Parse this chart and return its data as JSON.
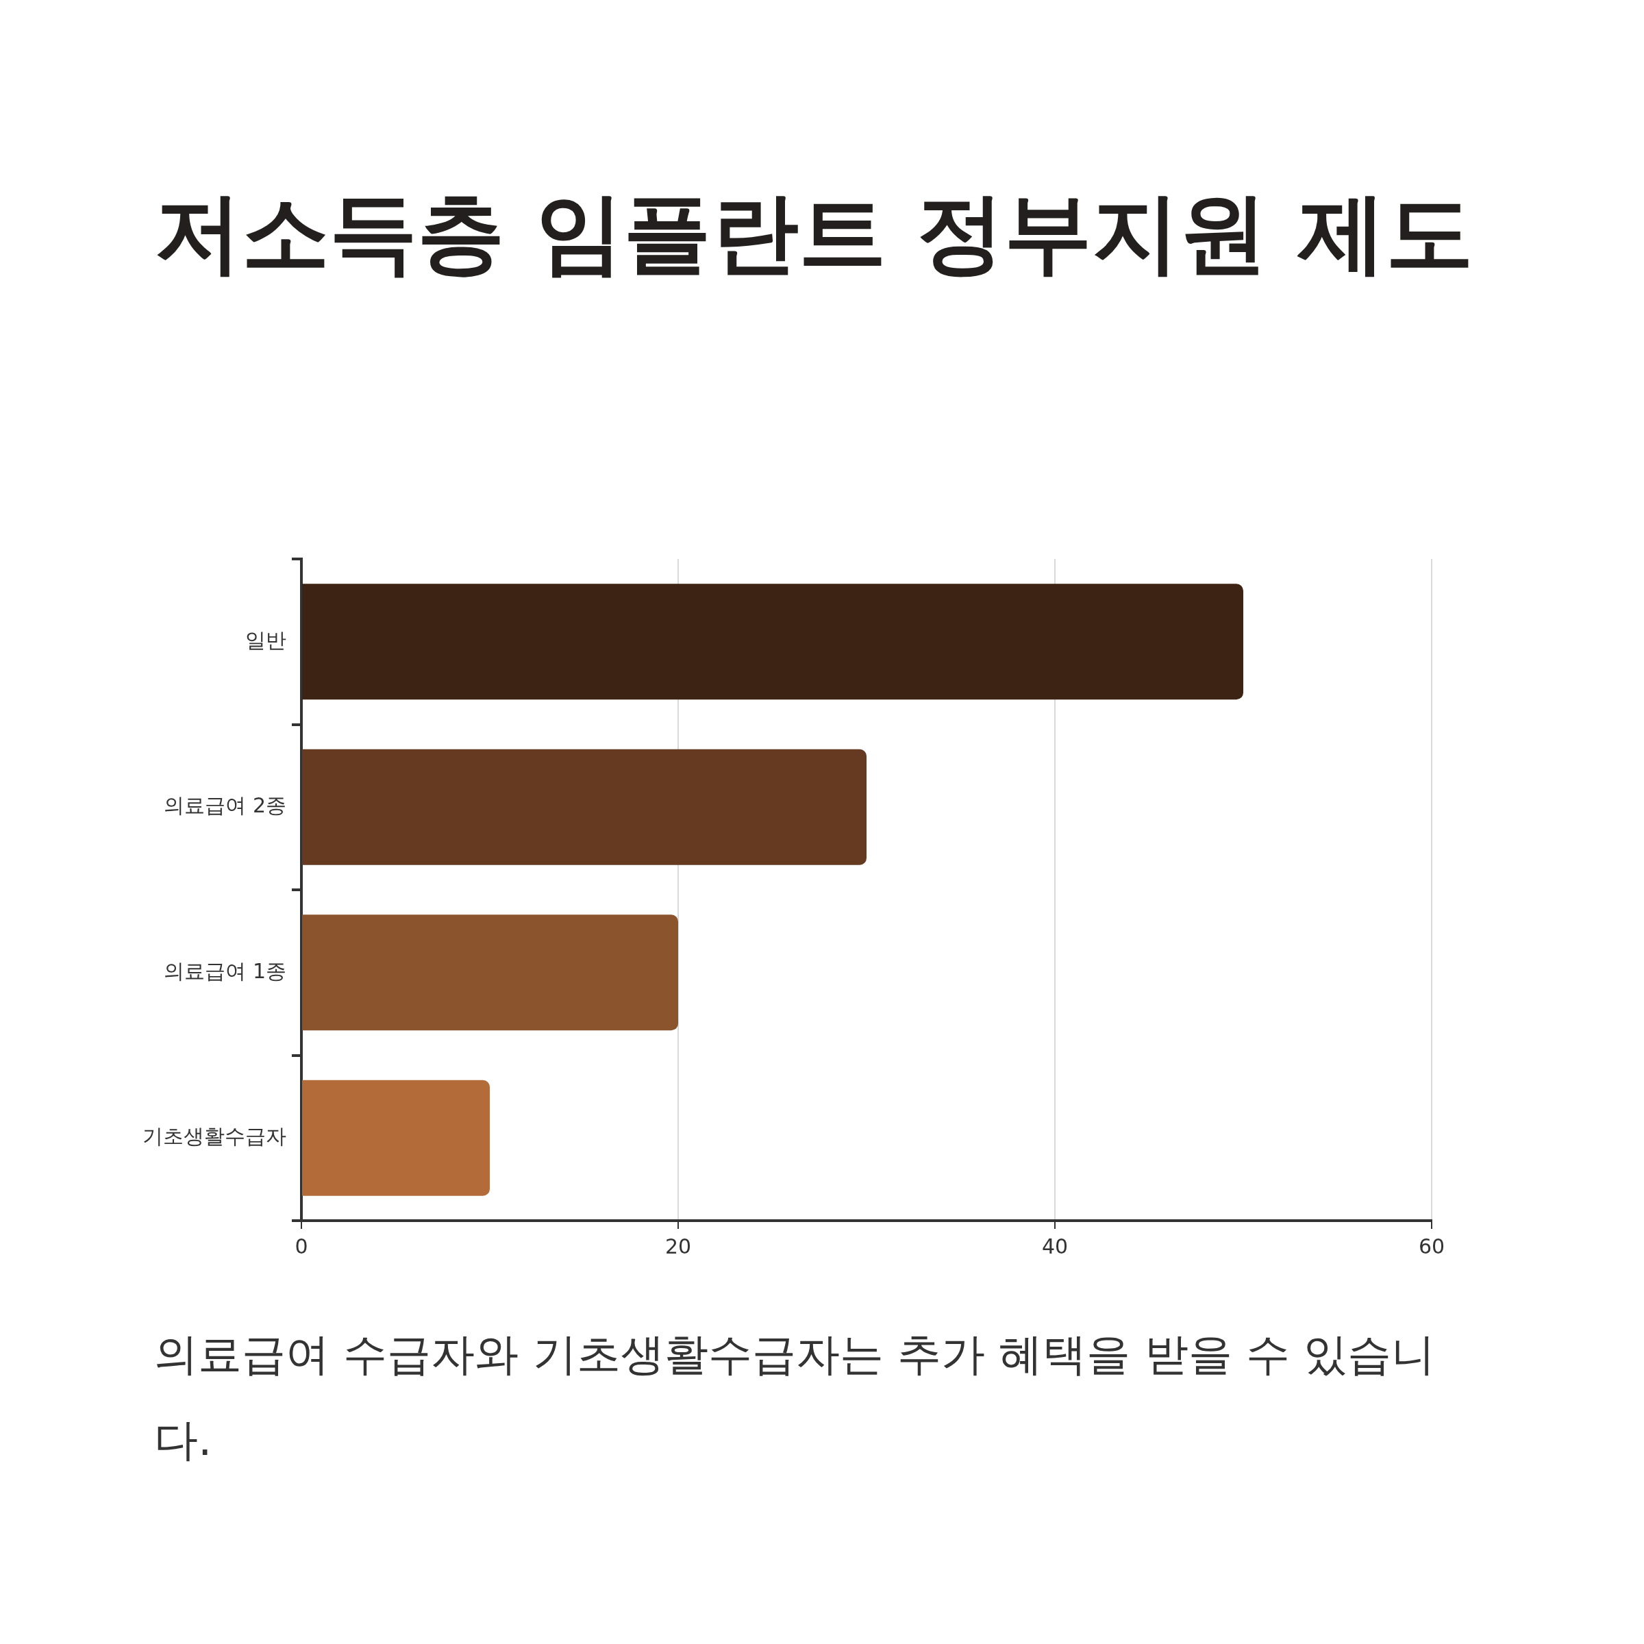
{
  "chart_data": {
    "type": "bar",
    "title": "저소득층 임플란트 정부지원 제도",
    "orientation": "horizontal",
    "categories": [
      "일반",
      "의료급여 2종",
      "의료급여 1종",
      "기초생활수급자"
    ],
    "values": [
      50,
      30,
      20,
      10
    ],
    "colors": [
      "#3d2314",
      "#653a20",
      "#8b542d",
      "#b36b3a"
    ],
    "xlim": [
      0,
      60
    ],
    "xticks": [
      0,
      20,
      40,
      60
    ],
    "grid": "x",
    "annotations": [
      "의료급여 수급자와 기초생활수급자는 추가 혜택을 받을 수 있습니다."
    ]
  }
}
